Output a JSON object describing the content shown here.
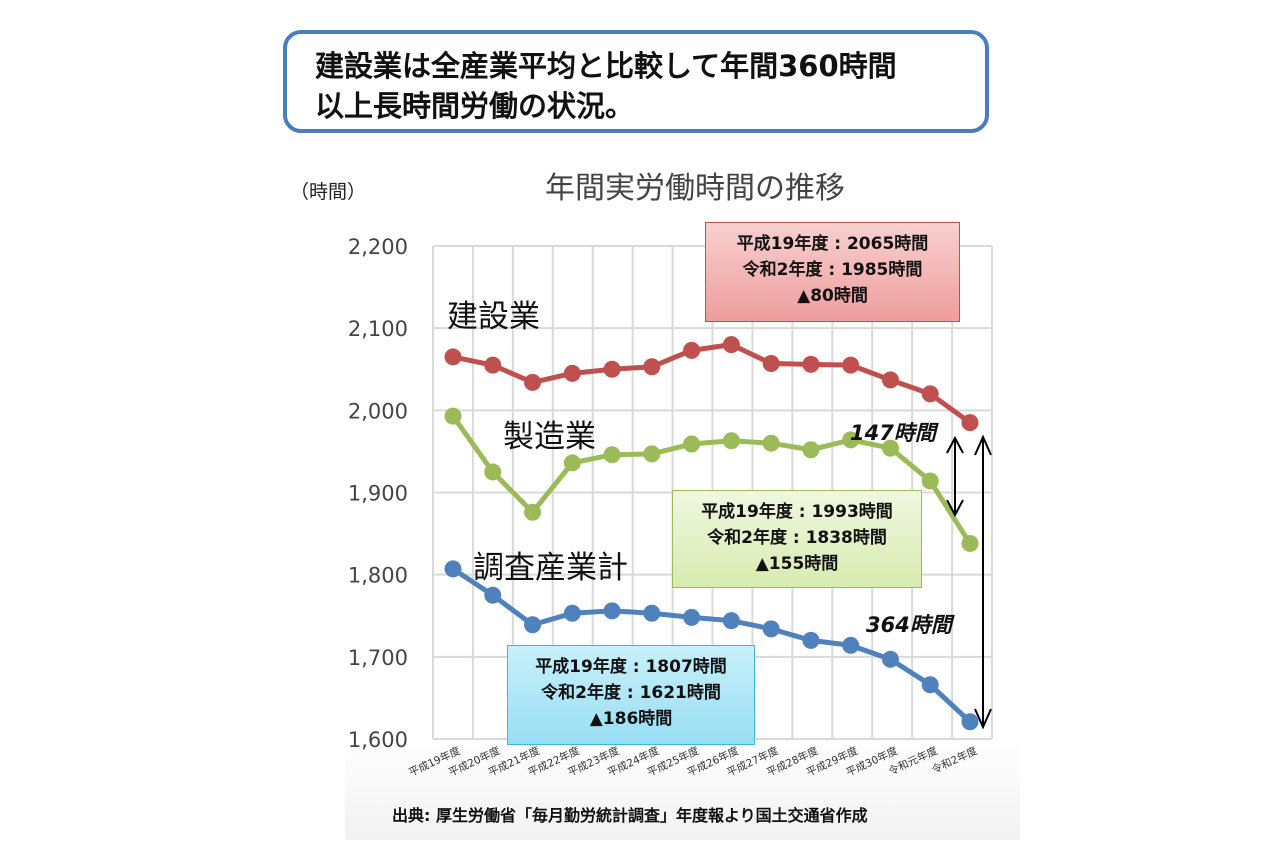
{
  "headline": [
    "建設業は全産業平均と比較して年間360時間",
    "以上長時間労働の状況。"
  ],
  "source": "出典: 厚生労働省「毎月勤労統計調査」年度報より国土交通省作成",
  "chart_data": {
    "type": "line",
    "title": "年間実労働時間の推移",
    "ylabel": "（時間）",
    "ylim": [
      1600,
      2200
    ],
    "yticks": [
      "1,600",
      "1,700",
      "1,800",
      "1,900",
      "2,000",
      "2,100",
      "2,200"
    ],
    "ytick_values": [
      1600,
      1700,
      1800,
      1900,
      2000,
      2100,
      2200
    ],
    "grid": true,
    "categories": [
      "平成19年度",
      "平成20年度",
      "平成21年度",
      "平成22年度",
      "平成23年度",
      "平成24年度",
      "平成25年度",
      "平成26年度",
      "平成27年度",
      "平成28年度",
      "平成29年度",
      "平成30年度",
      "令和元年度",
      "令和2年度"
    ],
    "series": [
      {
        "name": "建設業",
        "color": "#c0504d",
        "values": [
          2065,
          2055,
          2034,
          2045,
          2050,
          2053,
          2073,
          2080,
          2057,
          2056,
          2055,
          2037,
          2020,
          1985
        ]
      },
      {
        "name": "製造業",
        "color": "#9bbb59",
        "values": [
          1993,
          1925,
          1876,
          1936,
          1946,
          1947,
          1959,
          1963,
          1960,
          1952,
          1964,
          1954,
          1914,
          1838
        ]
      },
      {
        "name": "調査産業計",
        "color": "#4f81bd",
        "values": [
          1807,
          1775,
          1739,
          1753,
          1756,
          1753,
          1748,
          1744,
          1734,
          1720,
          1714,
          1697,
          1666,
          1621
        ]
      }
    ],
    "annotations": {
      "construction": [
        "平成19年度 : 2065時間",
        "令和2年度 : 1985時間",
        "▲80時間"
      ],
      "manufacturing": [
        "平成19年度 : 1993時間",
        "令和2年度 : 1838時間",
        "▲155時間"
      ],
      "total": [
        "平成19年度 : 1807時間",
        "令和2年度 : 1621時間",
        "▲186時間"
      ],
      "gap_manufacturing": "147時間",
      "gap_total": "364時間"
    }
  }
}
